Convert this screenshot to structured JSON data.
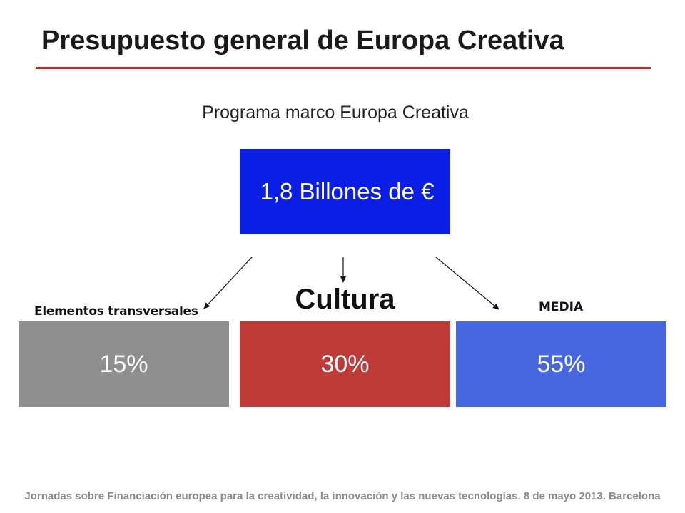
{
  "header": {
    "title": "Presupuesto general de Europa Creativa"
  },
  "diagram": {
    "top_label": "Programa marco Europa Creativa",
    "top_box_text": "1,8 Billones  de €",
    "branches": [
      {
        "label": "Elementos transversales",
        "value": "15%",
        "color": "#8f8f8f"
      },
      {
        "label": "Cultura",
        "value": "30%",
        "color": "#bf3b37"
      },
      {
        "label": "MEDIA",
        "value": "55%",
        "color": "#4667e0"
      }
    ],
    "top_box_color": "#0a1ee6",
    "accent_rule_color": "#c0282d"
  },
  "footer": {
    "text": "Jornadas sobre Financiación europea para la creatividad, la innovación y las nuevas tecnologías. 8 de mayo 2013. Barcelona"
  }
}
